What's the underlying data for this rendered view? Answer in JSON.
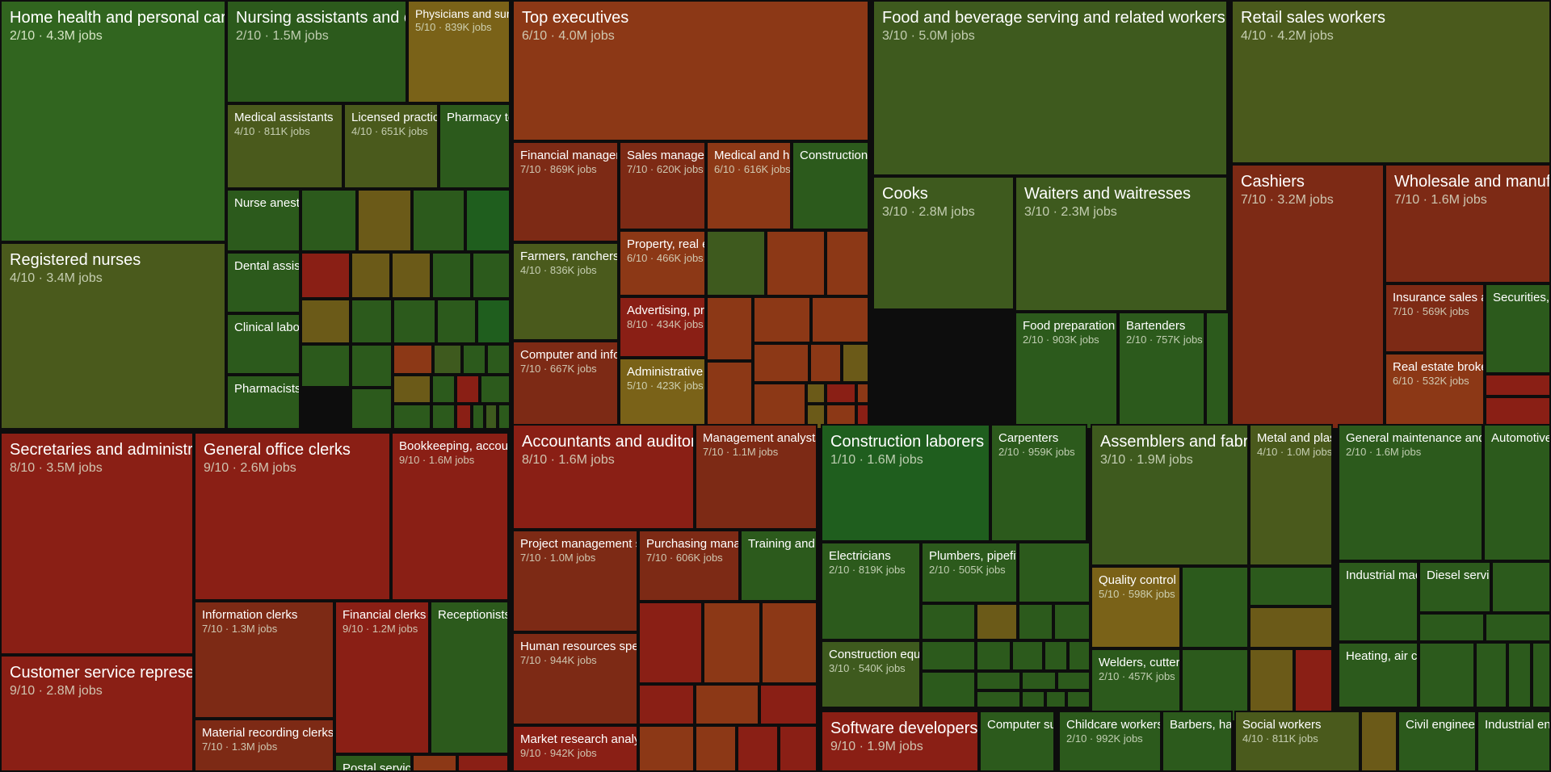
{
  "chart_data": {
    "type": "treemap",
    "title": "",
    "value_unit": "jobs",
    "score_scale": "n/10",
    "color_scale": {
      "low": "#1f5e1e",
      "mid": "#7a6a18",
      "high": "#8a1a15"
    },
    "tiles": [
      {
        "name": "Home health and personal care aides",
        "score": 2,
        "jobs": "4.3M"
      },
      {
        "name": "Registered nurses",
        "score": 4,
        "jobs": "3.4M"
      },
      {
        "name": "Nursing assistants and orderlies",
        "score": 2,
        "jobs": "1.5M"
      },
      {
        "name": "Physicians and surgeons",
        "score": 5,
        "jobs": "839K"
      },
      {
        "name": "Medical assistants",
        "score": 4,
        "jobs": "811K"
      },
      {
        "name": "Licensed practical and licensed vocational nurses",
        "score": 4,
        "jobs": "651K"
      },
      {
        "name": "Pharmacy technicians",
        "score": null,
        "jobs": null
      },
      {
        "name": "Nurse anesthetists",
        "score": null,
        "jobs": null
      },
      {
        "name": "Dental assistants",
        "score": null,
        "jobs": null
      },
      {
        "name": "Clinical laboratory technologists",
        "score": null,
        "jobs": null
      },
      {
        "name": "Pharmacists",
        "score": null,
        "jobs": null
      },
      {
        "name": "Top executives",
        "score": 6,
        "jobs": "4.0M"
      },
      {
        "name": "Financial managers",
        "score": 7,
        "jobs": "869K"
      },
      {
        "name": "Sales managers",
        "score": 7,
        "jobs": "620K"
      },
      {
        "name": "Medical and health services managers",
        "score": 6,
        "jobs": "616K"
      },
      {
        "name": "Construction managers",
        "score": null,
        "jobs": null
      },
      {
        "name": "Farmers, ranchers, and other agricultural managers",
        "score": 4,
        "jobs": "836K"
      },
      {
        "name": "Property, real estate, and community association managers",
        "score": 6,
        "jobs": "466K"
      },
      {
        "name": "Advertising, promotions, and marketing managers",
        "score": 8,
        "jobs": "434K"
      },
      {
        "name": "Computer and information systems managers",
        "score": 7,
        "jobs": "667K"
      },
      {
        "name": "Administrative services managers",
        "score": 5,
        "jobs": "423K"
      },
      {
        "name": "Food and beverage serving and related workers",
        "score": 3,
        "jobs": "5.0M"
      },
      {
        "name": "Cooks",
        "score": 3,
        "jobs": "2.8M"
      },
      {
        "name": "Waiters and waitresses",
        "score": 3,
        "jobs": "2.3M"
      },
      {
        "name": "Food preparation workers",
        "score": 2,
        "jobs": "903K"
      },
      {
        "name": "Bartenders",
        "score": 2,
        "jobs": "757K"
      },
      {
        "name": "Retail sales workers",
        "score": 4,
        "jobs": "4.2M"
      },
      {
        "name": "Cashiers",
        "score": 7,
        "jobs": "3.2M"
      },
      {
        "name": "Wholesale and manufacturing sales representatives",
        "score": 7,
        "jobs": "1.6M"
      },
      {
        "name": "Insurance sales agents",
        "score": 7,
        "jobs": "569K"
      },
      {
        "name": "Securities, commodities, and financial services sales agents",
        "score": null,
        "jobs": null
      },
      {
        "name": "Real estate brokers and sales agents",
        "score": 6,
        "jobs": "532K"
      },
      {
        "name": "Secretaries and administrative assistants",
        "score": 8,
        "jobs": "3.5M"
      },
      {
        "name": "Customer service representatives",
        "score": 9,
        "jobs": "2.8M"
      },
      {
        "name": "General office clerks",
        "score": 9,
        "jobs": "2.6M"
      },
      {
        "name": "Bookkeeping, accounting, and auditing clerks",
        "score": 9,
        "jobs": "1.6M"
      },
      {
        "name": "Information clerks",
        "score": 7,
        "jobs": "1.3M"
      },
      {
        "name": "Financial clerks",
        "score": 9,
        "jobs": "1.2M"
      },
      {
        "name": "Receptionists",
        "score": null,
        "jobs": null
      },
      {
        "name": "Material recording clerks",
        "score": 7,
        "jobs": "1.3M"
      },
      {
        "name": "Postal service workers",
        "score": null,
        "jobs": null
      },
      {
        "name": "Accountants and auditors",
        "score": 8,
        "jobs": "1.6M"
      },
      {
        "name": "Management analysts",
        "score": 7,
        "jobs": "1.1M"
      },
      {
        "name": "Project management specialists",
        "score": 7,
        "jobs": "1.0M"
      },
      {
        "name": "Purchasing managers, buyers, and purchasing agents",
        "score": 7,
        "jobs": "606K"
      },
      {
        "name": "Training and development specialists",
        "score": null,
        "jobs": null
      },
      {
        "name": "Human resources specialists",
        "score": 7,
        "jobs": "944K"
      },
      {
        "name": "Market research analysts",
        "score": 9,
        "jobs": "942K"
      },
      {
        "name": "Construction laborers and helpers",
        "score": 1,
        "jobs": "1.6M"
      },
      {
        "name": "Carpenters",
        "score": 2,
        "jobs": "959K"
      },
      {
        "name": "Electricians",
        "score": 2,
        "jobs": "819K"
      },
      {
        "name": "Plumbers, pipefitters, and steamfitters",
        "score": 2,
        "jobs": "505K"
      },
      {
        "name": "Construction equipment operators",
        "score": 3,
        "jobs": "540K"
      },
      {
        "name": "Assemblers and fabricators",
        "score": 3,
        "jobs": "1.9M"
      },
      {
        "name": "Metal and plastic machine workers",
        "score": 4,
        "jobs": "1.0M"
      },
      {
        "name": "Quality control inspectors",
        "score": 5,
        "jobs": "598K"
      },
      {
        "name": "Welders, cutters, solderers, and brazers",
        "score": 2,
        "jobs": "457K"
      },
      {
        "name": "General maintenance and repair workers",
        "score": 2,
        "jobs": "1.6M"
      },
      {
        "name": "Automotive service technicians and mechanics",
        "score": null,
        "jobs": null
      },
      {
        "name": "Industrial machinery mechanics",
        "score": null,
        "jobs": null
      },
      {
        "name": "Diesel service technicians and mechanics",
        "score": null,
        "jobs": null
      },
      {
        "name": "Heating, air conditioning, and refrigeration mechanics",
        "score": null,
        "jobs": null
      },
      {
        "name": "Software developers",
        "score": 9,
        "jobs": "1.9M"
      },
      {
        "name": "Computer support specialists",
        "score": null,
        "jobs": null
      },
      {
        "name": "Childcare workers",
        "score": 2,
        "jobs": "992K"
      },
      {
        "name": "Barbers, hairstylists, and cosmetologists",
        "score": null,
        "jobs": null
      },
      {
        "name": "Social workers",
        "score": 4,
        "jobs": "811K"
      },
      {
        "name": "Civil engineers",
        "score": null,
        "jobs": null
      },
      {
        "name": "Industrial engineers",
        "score": null,
        "jobs": null
      }
    ]
  }
}
